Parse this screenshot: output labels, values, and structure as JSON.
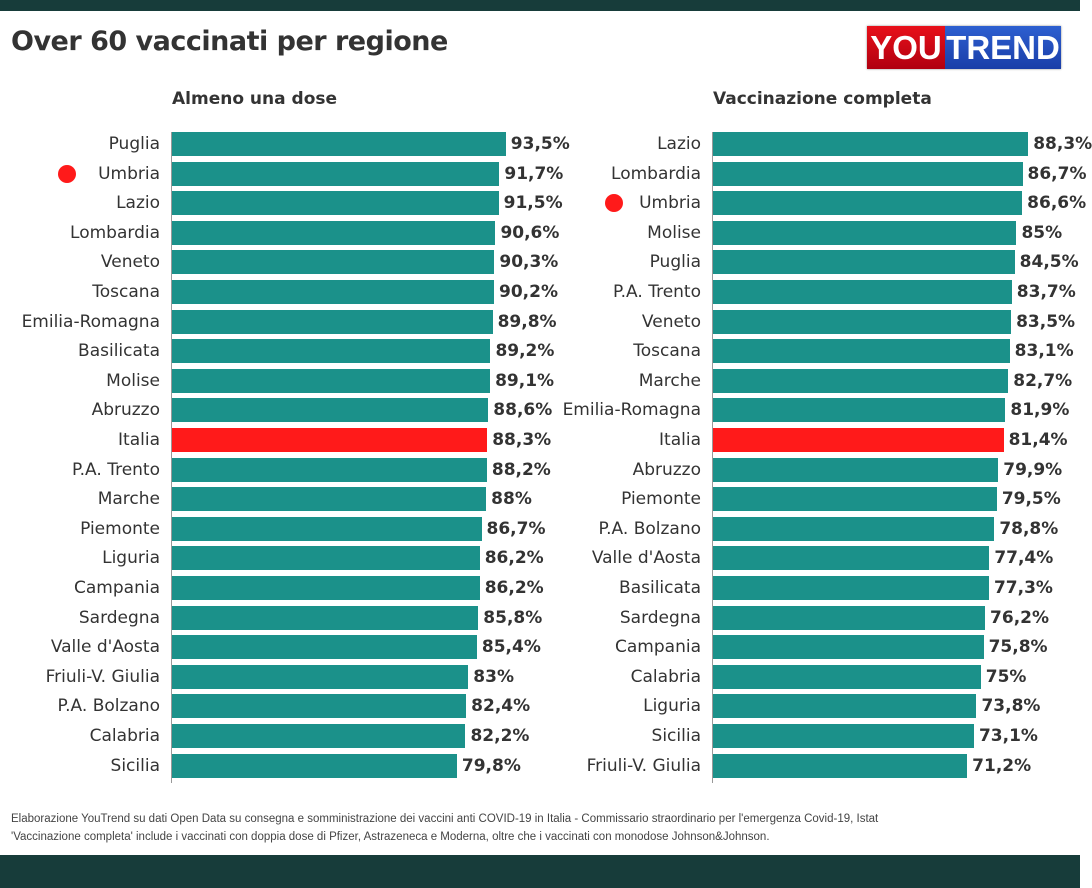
{
  "title": "Over 60 vaccinati per regione",
  "logo": {
    "part1": "YOU",
    "part2": "TREND"
  },
  "colors": {
    "bar": "#1b918a",
    "highlight": "#ff1a1a",
    "marker": "#ff1a1a"
  },
  "chart_data": [
    {
      "type": "bar",
      "orientation": "horizontal",
      "title": "Almeno una dose",
      "unit": "%",
      "xlim": [
        0,
        100
      ],
      "highlight": "Italia",
      "marked": "Umbria",
      "categories": [
        "Puglia",
        "Umbria",
        "Lazio",
        "Lombardia",
        "Veneto",
        "Toscana",
        "Emilia-Romagna",
        "Basilicata",
        "Molise",
        "Abruzzo",
        "Italia",
        "P.A. Trento",
        "Marche",
        "Piemonte",
        "Liguria",
        "Campania",
        "Sardegna",
        "Valle d'Aosta",
        "Friuli-V. Giulia",
        "P.A. Bolzano",
        "Calabria",
        "Sicilia"
      ],
      "values": [
        93.5,
        91.7,
        91.5,
        90.6,
        90.3,
        90.2,
        89.8,
        89.2,
        89.1,
        88.6,
        88.3,
        88.2,
        88,
        86.7,
        86.2,
        86.2,
        85.8,
        85.4,
        83,
        82.4,
        82.2,
        79.8
      ],
      "labels": [
        "93,5%",
        "91,7%",
        "91,5%",
        "90,6%",
        "90,3%",
        "90,2%",
        "89,8%",
        "89,2%",
        "89,1%",
        "88,6%",
        "88,3%",
        "88,2%",
        "88%",
        "86,7%",
        "86,2%",
        "86,2%",
        "85,8%",
        "85,4%",
        "83%",
        "82,4%",
        "82,2%",
        "79,8%"
      ]
    },
    {
      "type": "bar",
      "orientation": "horizontal",
      "title": "Vaccinazione completa",
      "unit": "%",
      "xlim": [
        0,
        100
      ],
      "highlight": "Italia",
      "marked": "Umbria",
      "categories": [
        "Lazio",
        "Lombardia",
        "Umbria",
        "Molise",
        "Puglia",
        "P.A. Trento",
        "Veneto",
        "Toscana",
        "Marche",
        "Emilia-Romagna",
        "Italia",
        "Abruzzo",
        "Piemonte",
        "P.A. Bolzano",
        "Valle d'Aosta",
        "Basilicata",
        "Sardegna",
        "Campania",
        "Calabria",
        "Liguria",
        "Sicilia",
        "Friuli-V. Giulia"
      ],
      "values": [
        88.3,
        86.7,
        86.6,
        85,
        84.5,
        83.7,
        83.5,
        83.1,
        82.7,
        81.9,
        81.4,
        79.9,
        79.5,
        78.8,
        77.4,
        77.3,
        76.2,
        75.8,
        75,
        73.8,
        73.1,
        71.2
      ],
      "labels": [
        "88,3%",
        "86,7%",
        "86,6%",
        "85%",
        "84,5%",
        "83,7%",
        "83,5%",
        "83,1%",
        "82,7%",
        "81,9%",
        "81,4%",
        "79,9%",
        "79,5%",
        "78,8%",
        "77,4%",
        "77,3%",
        "76,2%",
        "75,8%",
        "75%",
        "73,8%",
        "73,1%",
        "71,2%"
      ]
    }
  ],
  "footer": {
    "line1": "Elaborazione YouTrend su dati Open Data su consegna e somministrazione dei vaccini anti COVID-19 in Italia - Commissario straordinario per l'emergenza Covid-19, Istat",
    "line2": "'Vaccinazione completa' include i vaccinati con doppia dose di Pfizer, Astrazeneca e Moderna, oltre che i vaccinati con monodose Johnson&Johnson."
  }
}
